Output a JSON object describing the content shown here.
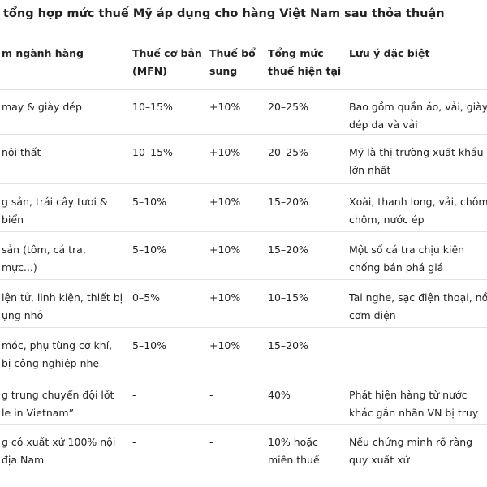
{
  "header": {
    "title": "tổng hợp mức thuế Mỹ áp dụng cho hàng Việt Nam sau thỏa thuận"
  },
  "table": {
    "columns": [
      "m ngành hàng",
      "Thuế cơ bản (MFN)",
      "Thuế bổ sung",
      "Tổng mức thuế hiện tại",
      "Lưu ý đặc biệt"
    ],
    "rows": [
      [
        "may & giày dép",
        "10–15%",
        "+10%",
        "20–25%",
        "Bao gồm quần áo, vải, giày dép da và vải"
      ],
      [
        "nội thất",
        "10–15%",
        "+10%",
        "20–25%",
        "Mỹ là thị trường xuất khẩu lớn nhất"
      ],
      [
        "g sản, trái cây tươi & biển",
        "5–10%",
        "+10%",
        "15–20%",
        "Xoài, thanh long, vải, chôm chôm, nước ép"
      ],
      [
        "sản (tôm, cá tra, mực...)",
        "5–10%",
        "+10%",
        "15–20%",
        "Một số cá tra chịu kiện chống bán phá giá"
      ],
      [
        "iện tử, linh kiện, thiết bị ụng nhỏ",
        "0–5%",
        "+10%",
        "10–15%",
        "Tai nghe, sạc điện thoại, nồi cơm điện"
      ],
      [
        "móc, phụ tùng cơ khí, bị công nghiệp nhẹ",
        "5–10%",
        "+10%",
        "15–20%",
        null
      ],
      [
        "g trung chuyển đội lốt le in Vietnam”",
        "-",
        "-",
        "40%",
        "Phát hiện hàng từ nước khác gắn nhãn VN bị truy thu thuế"
      ],
      [
        "g có xuất xứ 100% nội địa Nam",
        "-",
        "-",
        "10% hoặc miễn thuế",
        "Nếu chứng minh rõ ràng quy xuất xứ"
      ]
    ]
  }
}
